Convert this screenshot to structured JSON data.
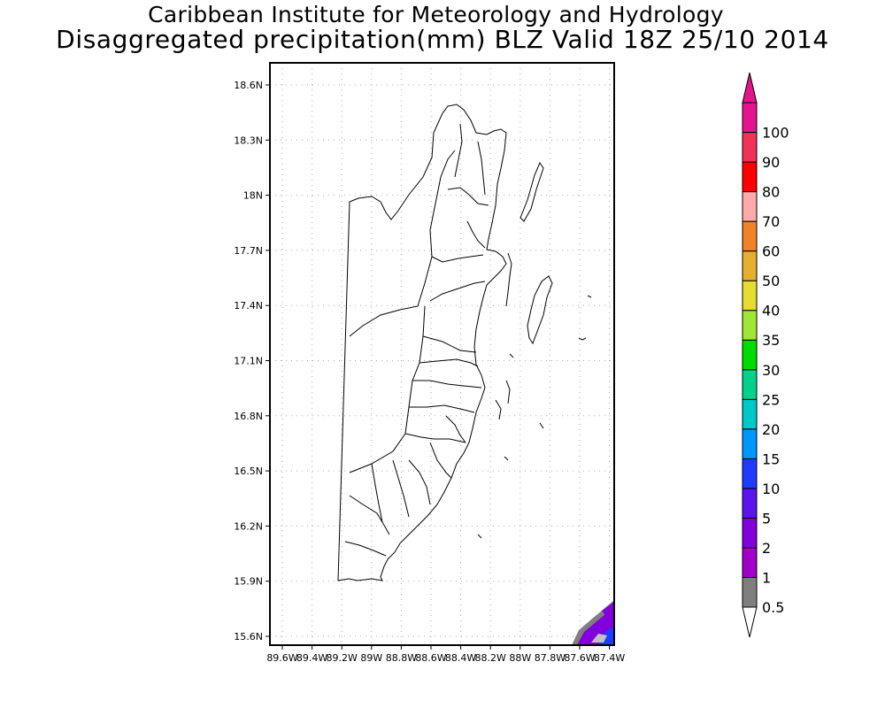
{
  "title": {
    "line1": "Caribbean Institute for Meteorology and Hydrology",
    "line2": "Disaggregated precipitation(mm) BLZ Valid 18Z 25/10 2014"
  },
  "map": {
    "lat_ticks": [
      "18.6N",
      "18.3N",
      "18N",
      "17.7N",
      "17.4N",
      "17.1N",
      "16.8N",
      "16.5N",
      "16.2N",
      "15.9N",
      "15.6N"
    ],
    "lon_ticks": [
      "89.6W",
      "89.4W",
      "89.2W",
      "89W",
      "88.8W",
      "88.6W",
      "88.4W",
      "88.2W",
      "88W",
      "87.8W",
      "87.6W",
      "87.4W"
    ],
    "grid": "dotted"
  },
  "colorbar": {
    "labels": [
      "0.5",
      "1",
      "2",
      "5",
      "10",
      "15",
      "20",
      "25",
      "30",
      "35",
      "40",
      "50",
      "60",
      "70",
      "80",
      "90",
      "100"
    ],
    "colors": [
      "#7f7f7f",
      "#a000c8",
      "#8200dc",
      "#5a14f0",
      "#1e3cff",
      "#0096ff",
      "#00c8c8",
      "#00d28c",
      "#00dc00",
      "#a0e632",
      "#e6dc32",
      "#e6af2d",
      "#f08228",
      "#ffaaaa",
      "#ff0000",
      "#f0325a",
      "#e6148c"
    ]
  }
}
